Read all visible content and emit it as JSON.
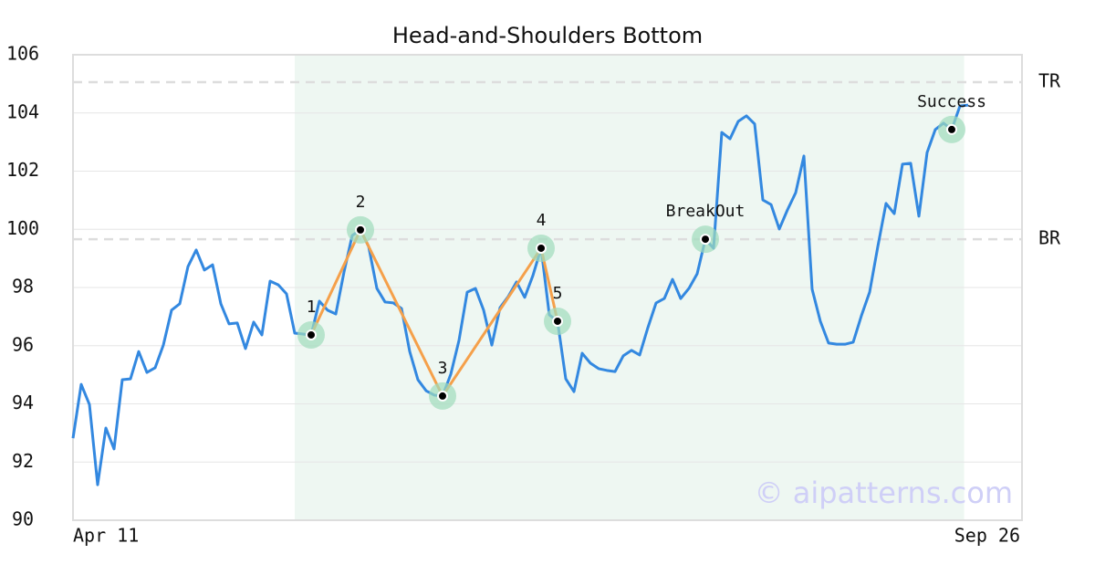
{
  "chart_data": {
    "type": "line",
    "title": "Head-and-Shoulders Bottom",
    "categories": [
      "Apr 11",
      null,
      null,
      null,
      null,
      null,
      null,
      null,
      null,
      null,
      null,
      null,
      null,
      null,
      null,
      null,
      null,
      null,
      null,
      null,
      null,
      null,
      null,
      null,
      null,
      null,
      null,
      null,
      null,
      null,
      null,
      null,
      null,
      null,
      null,
      null,
      null,
      null,
      null,
      null,
      null,
      null,
      null,
      null,
      null,
      null,
      null,
      null,
      null,
      null,
      null,
      null,
      null,
      null,
      null,
      null,
      null,
      null,
      null,
      null,
      null,
      null,
      null,
      null,
      null,
      null,
      null,
      null,
      null,
      null,
      null,
      null,
      null,
      null,
      null,
      null,
      null,
      null,
      null,
      null,
      null,
      null,
      null,
      null,
      null,
      null,
      null,
      null,
      null,
      null,
      null,
      null,
      null,
      null,
      null,
      null,
      null,
      null,
      null,
      null,
      null,
      null,
      null,
      null,
      null,
      null,
      null,
      null,
      null,
      "Sep 26"
    ],
    "series": [
      {
        "color": "#3388e0",
        "values": [
          92.82,
          94.67,
          93.98,
          91.22,
          93.17,
          92.45,
          94.83,
          94.86,
          95.8,
          95.08,
          95.24,
          96.02,
          97.22,
          97.44,
          98.72,
          99.29,
          98.6,
          98.78,
          97.44,
          96.75,
          96.78,
          95.9,
          96.81,
          96.37,
          98.22,
          98.09,
          97.78,
          96.43,
          96.4,
          96.37,
          97.53,
          97.22,
          97.09,
          98.53,
          99.79,
          99.98,
          99.41,
          97.97,
          97.5,
          97.47,
          97.28,
          95.8,
          94.83,
          94.45,
          94.3,
          94.27,
          95.02,
          96.18,
          97.84,
          97.97,
          97.22,
          96.02,
          97.31,
          97.69,
          98.19,
          97.66,
          98.41,
          99.35,
          97.06,
          96.84,
          94.86,
          94.42,
          95.74,
          95.4,
          95.21,
          95.15,
          95.11,
          95.65,
          95.84,
          95.68,
          96.62,
          97.47,
          97.62,
          98.28,
          97.62,
          97.97,
          98.47,
          99.66,
          99.35,
          103.33,
          103.11,
          103.71,
          103.9,
          103.62,
          101.01,
          100.85,
          100.01,
          100.67,
          101.26,
          102.52,
          97.94,
          96.84,
          96.09,
          96.05,
          96.05,
          96.12,
          97.03,
          97.84,
          99.41,
          100.89,
          100.54,
          102.24,
          102.27,
          100.45,
          102.64,
          103.43,
          103.65,
          103.43,
          104.24,
          104.27
        ]
      }
    ],
    "pattern_points": [
      {
        "label": "1",
        "x": 29,
        "value": 96.37
      },
      {
        "label": "2",
        "x": 35,
        "value": 99.98
      },
      {
        "label": "3",
        "x": 45,
        "value": 94.27
      },
      {
        "label": "4",
        "x": 57,
        "value": 99.35
      },
      {
        "label": "5",
        "x": 59,
        "value": 96.84
      }
    ],
    "pattern_color": "#f5a04a",
    "events": [
      {
        "label": "BreakOut",
        "x": 77,
        "value": 99.66
      },
      {
        "label": "Success",
        "x": 107,
        "value": 103.43
      }
    ],
    "levels": [
      {
        "label": "TR",
        "value": 105.06
      },
      {
        "label": "BR",
        "value": 99.66
      }
    ],
    "ylim": [
      90,
      106
    ],
    "yticks": [
      90,
      92,
      94,
      96,
      98,
      100,
      102,
      104,
      106
    ],
    "grid": true,
    "watermark": "© aipatterns.com"
  }
}
